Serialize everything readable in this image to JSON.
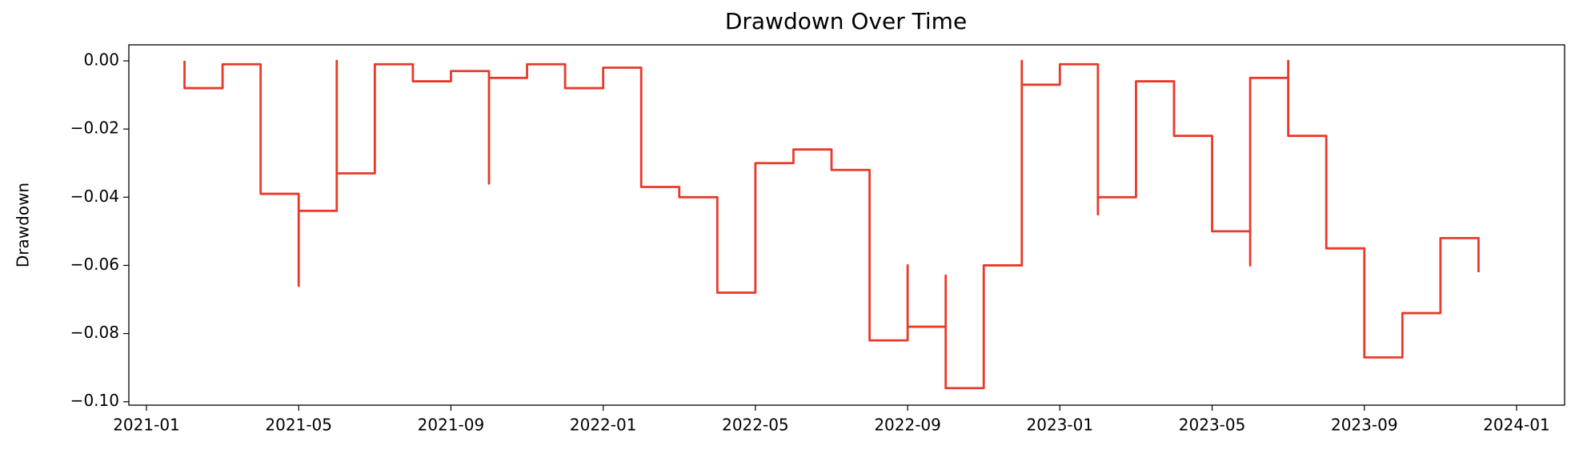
{
  "chart_data": {
    "type": "line",
    "title": "Drawdown Over Time",
    "y_label": "Drawdown",
    "x": [
      "2021-02",
      "2021-03",
      "2021-04",
      "2021-05",
      "2021-05",
      "2021-06",
      "2021-06",
      "2021-07",
      "2021-07",
      "2021-08",
      "2021-09",
      "2021-10",
      "2021-10",
      "2021-11",
      "2021-12",
      "2022-01",
      "2022-02",
      "2022-02",
      "2022-03",
      "2022-04",
      "2022-04",
      "2022-05",
      "2022-05",
      "2022-06",
      "2022-07",
      "2022-08",
      "2022-08",
      "2022-09",
      "2022-09",
      "2022-10",
      "2022-10",
      "2022-11",
      "2022-11",
      "2022-12",
      "2022-12",
      "2022-12",
      "2023-01",
      "2023-02",
      "2023-02",
      "2023-03",
      "2023-03",
      "2023-04",
      "2023-04",
      "2023-05",
      "2023-05",
      "2023-06",
      "2023-06",
      "2023-06",
      "2023-07",
      "2023-07",
      "2023-08",
      "2023-08",
      "2023-09",
      "2023-09",
      "2023-10",
      "2023-10",
      "2023-11",
      "2023-11",
      "2023-12",
      "2023-12"
    ],
    "series": [
      {
        "name": "Drawdown",
        "color": "#e8392b",
        "values": [
          0,
          -0.008,
          -0.001,
          -0.039,
          -0.066,
          -0.044,
          0,
          -0.033,
          -0.003,
          -0.001,
          -0.006,
          -0.003,
          -0.036,
          -0.005,
          -0.001,
          -0.008,
          -0.002,
          -0.027,
          -0.037,
          -0.04,
          -0.058,
          -0.068,
          -0.036,
          -0.03,
          -0.026,
          -0.032,
          -0.08,
          -0.082,
          -0.06,
          -0.078,
          -0.063,
          -0.096,
          -0.071,
          -0.06,
          -0.038,
          0,
          -0.007,
          -0.001,
          -0.045,
          -0.04,
          -0.03,
          -0.006,
          -0.015,
          -0.022,
          -0.03,
          -0.05,
          -0.06,
          -0.009,
          -0.005,
          0,
          -0.022,
          -0.035,
          -0.055,
          -0.077,
          -0.087,
          -0.078,
          -0.074,
          -0.065,
          -0.052,
          -0.062
        ]
      }
    ],
    "xlim": [
      "2021-01",
      "2024-01"
    ],
    "xticks": [
      "2021-01",
      "2021-05",
      "2021-09",
      "2022-01",
      "2022-05",
      "2022-09",
      "2023-01",
      "2023-05",
      "2023-09",
      "2024-01"
    ],
    "ylim": [
      -0.101,
      0.0047
    ],
    "yticks": [
      {
        "value": 0,
        "label": "0.00"
      },
      {
        "value": -0.02,
        "label": "−0.02"
      },
      {
        "value": -0.04,
        "label": "−0.04"
      },
      {
        "value": -0.06,
        "label": "−0.06"
      },
      {
        "value": -0.08,
        "label": "−0.08"
      },
      {
        "value": -0.1,
        "label": "−0.10"
      }
    ],
    "step": true
  }
}
